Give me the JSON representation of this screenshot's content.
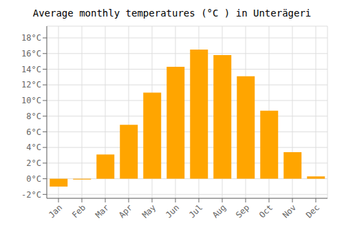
{
  "chart_data": {
    "type": "bar",
    "title": "Average monthly temperatures (°C ) in Unterägeri",
    "categories": [
      "Jan",
      "Feb",
      "Mar",
      "Apr",
      "May",
      "Jun",
      "Jul",
      "Aug",
      "Sep",
      "Oct",
      "Nov",
      "Dec"
    ],
    "values": [
      -1.0,
      -0.1,
      3.1,
      6.9,
      11.0,
      14.3,
      16.5,
      15.8,
      13.1,
      8.7,
      3.4,
      0.3
    ],
    "color": "#FFA500",
    "ylim": [
      -2.5,
      19.5
    ],
    "yticks": [
      {
        "value": -2,
        "label": "-2°C"
      },
      {
        "value": 0,
        "label": "0°C"
      },
      {
        "value": 2,
        "label": "2°C"
      },
      {
        "value": 4,
        "label": "4°C"
      },
      {
        "value": 6,
        "label": "6°C"
      },
      {
        "value": 8,
        "label": "8°C"
      },
      {
        "value": 10,
        "label": "10°C"
      },
      {
        "value": 12,
        "label": "12°C"
      },
      {
        "value": 14,
        "label": "14°C"
      },
      {
        "value": 16,
        "label": "16°C"
      },
      {
        "value": 18,
        "label": "18°C"
      }
    ],
    "grid": true
  }
}
